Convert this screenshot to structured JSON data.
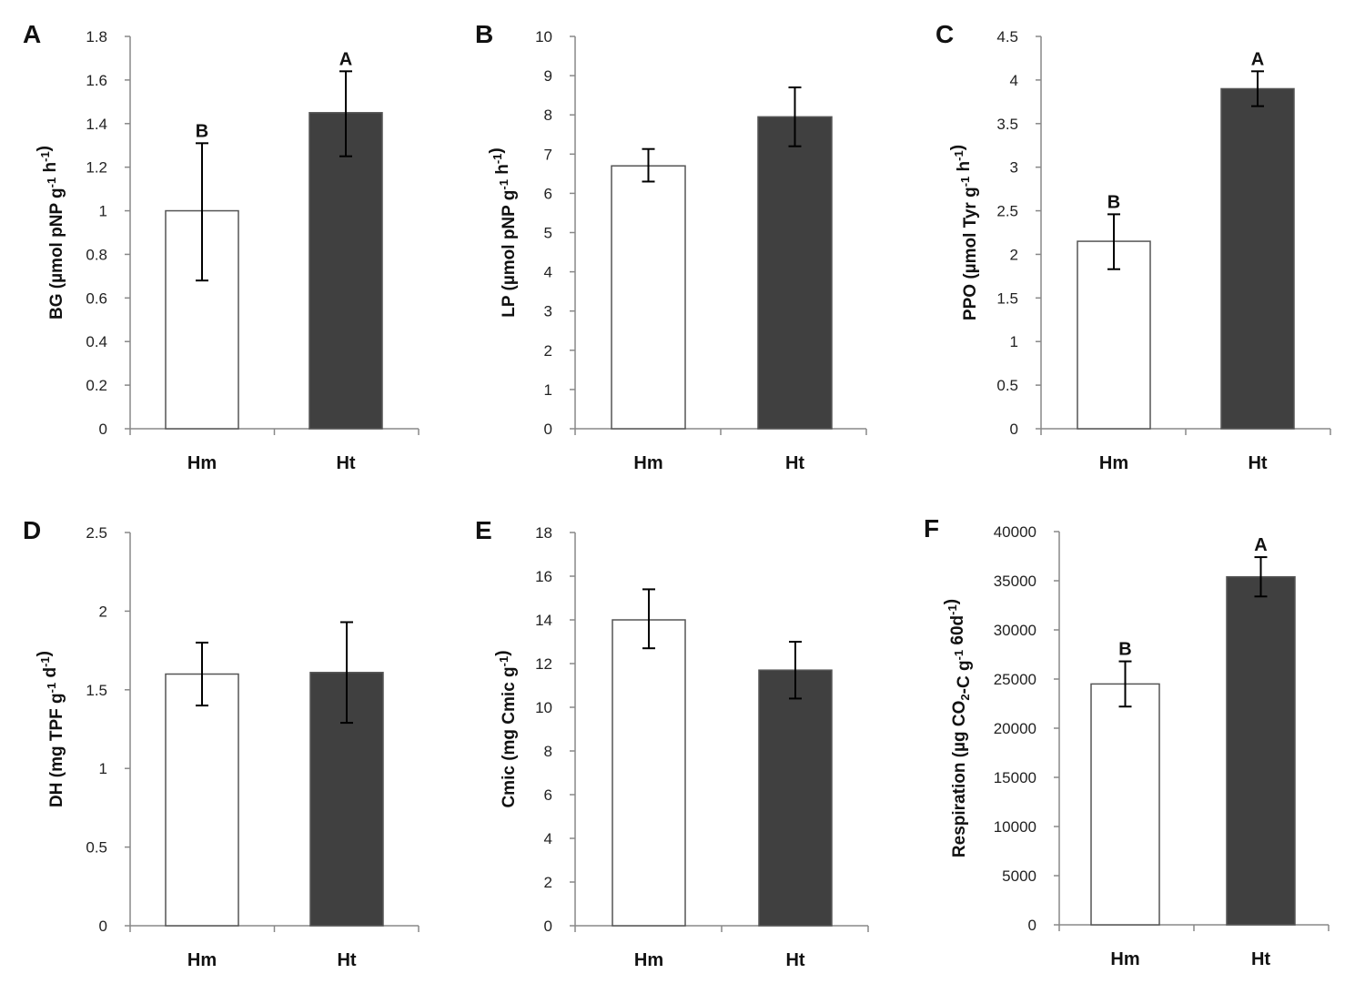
{
  "chart_data": [
    {
      "panel": "A",
      "type": "bar",
      "categories": [
        "Hm",
        "Ht"
      ],
      "values": [
        1.0,
        1.45
      ],
      "errors": [
        [
          0.68,
          1.31
        ],
        [
          1.25,
          1.64
        ]
      ],
      "letters": [
        "B",
        "A"
      ],
      "ylim": [
        0,
        1.8
      ],
      "ystep": 0.2,
      "yticks": [
        "0",
        "0.2",
        "0.4",
        "0.6",
        "0.8",
        "1",
        "1.2",
        "1.4",
        "1.6",
        "1.8"
      ],
      "ylabel_parts": [
        {
          "t": "BG (µmol pNP g",
          "s": ""
        },
        {
          "t": "-1",
          "s": "sup"
        },
        {
          "t": " h",
          "s": ""
        },
        {
          "t": "-1",
          "s": "sup"
        },
        {
          "t": ")",
          "s": ""
        }
      ]
    },
    {
      "panel": "B",
      "type": "bar",
      "categories": [
        "Hm",
        "Ht"
      ],
      "values": [
        6.7,
        7.95
      ],
      "errors": [
        [
          6.3,
          7.13
        ],
        [
          7.2,
          8.7
        ]
      ],
      "letters": [
        "",
        ""
      ],
      "ylim": [
        0,
        10
      ],
      "ystep": 1,
      "yticks": [
        "0",
        "1",
        "2",
        "3",
        "4",
        "5",
        "6",
        "7",
        "8",
        "9",
        "10"
      ],
      "ylabel_parts": [
        {
          "t": "LP (µmol pNP g",
          "s": ""
        },
        {
          "t": "-1",
          "s": "sup"
        },
        {
          "t": " h",
          "s": ""
        },
        {
          "t": "-1",
          "s": "sup"
        },
        {
          "t": ")",
          "s": ""
        }
      ]
    },
    {
      "panel": "C",
      "type": "bar",
      "categories": [
        "Hm",
        "Ht"
      ],
      "values": [
        2.15,
        3.9
      ],
      "errors": [
        [
          1.83,
          2.46
        ],
        [
          3.7,
          4.1
        ]
      ],
      "letters": [
        "B",
        "A"
      ],
      "ylim": [
        0,
        4.5
      ],
      "ystep": 0.5,
      "yticks": [
        "0",
        "0.5",
        "1",
        "1.5",
        "2",
        "2.5",
        "3",
        "3.5",
        "4",
        "4.5"
      ],
      "ylabel_parts": [
        {
          "t": "PPO (µmol Tyr g",
          "s": ""
        },
        {
          "t": "-1",
          "s": "sup"
        },
        {
          "t": " h",
          "s": ""
        },
        {
          "t": "-1",
          "s": "sup"
        },
        {
          "t": ")",
          "s": ""
        }
      ]
    },
    {
      "panel": "D",
      "type": "bar",
      "categories": [
        "Hm",
        "Ht"
      ],
      "values": [
        1.6,
        1.61
      ],
      "errors": [
        [
          1.4,
          1.8
        ],
        [
          1.29,
          1.93
        ]
      ],
      "letters": [
        "",
        ""
      ],
      "ylim": [
        0,
        2.5
      ],
      "ystep": 0.5,
      "yticks": [
        "0",
        "0.5",
        "1",
        "1.5",
        "2",
        "2.5"
      ],
      "ylabel_parts": [
        {
          "t": "DH (mg TPF g",
          "s": ""
        },
        {
          "t": "-1",
          "s": "sup"
        },
        {
          "t": " d",
          "s": ""
        },
        {
          "t": "-1",
          "s": "sup"
        },
        {
          "t": ")",
          "s": ""
        }
      ]
    },
    {
      "panel": "E",
      "type": "bar",
      "categories": [
        "Hm",
        "Ht"
      ],
      "values": [
        14.0,
        11.7
      ],
      "errors": [
        [
          12.7,
          15.4
        ],
        [
          10.4,
          13.0
        ]
      ],
      "letters": [
        "",
        ""
      ],
      "ylim": [
        0,
        18
      ],
      "ystep": 2,
      "yticks": [
        "0",
        "2",
        "4",
        "6",
        "8",
        "10",
        "12",
        "14",
        "16",
        "18"
      ],
      "ylabel_parts": [
        {
          "t": "Cmic (mg Cmic g",
          "s": ""
        },
        {
          "t": "-1",
          "s": "sup"
        },
        {
          "t": ")",
          "s": ""
        }
      ]
    },
    {
      "panel": "F",
      "type": "bar",
      "categories": [
        "Hm",
        "Ht"
      ],
      "values": [
        24500,
        35400
      ],
      "errors": [
        [
          22200,
          26800
        ],
        [
          33400,
          37400
        ]
      ],
      "letters": [
        "B",
        "A"
      ],
      "ylim": [
        0,
        40000
      ],
      "ystep": 5000,
      "yticks": [
        "0",
        "5000",
        "10000",
        "15000",
        "20000",
        "25000",
        "30000",
        "35000",
        "40000"
      ],
      "ylabel_parts": [
        {
          "t": "Respiration (µg CO",
          "s": ""
        },
        {
          "t": "2",
          "s": "sub"
        },
        {
          "t": "-C g",
          "s": ""
        },
        {
          "t": "-1",
          "s": "sup"
        },
        {
          "t": " 60d",
          "s": ""
        },
        {
          "t": "-1",
          "s": "sup"
        },
        {
          "t": ")",
          "s": ""
        }
      ]
    }
  ],
  "colors": {
    "Hm": "#ffffff",
    "Ht": "#404040",
    "edge": "#555555"
  }
}
